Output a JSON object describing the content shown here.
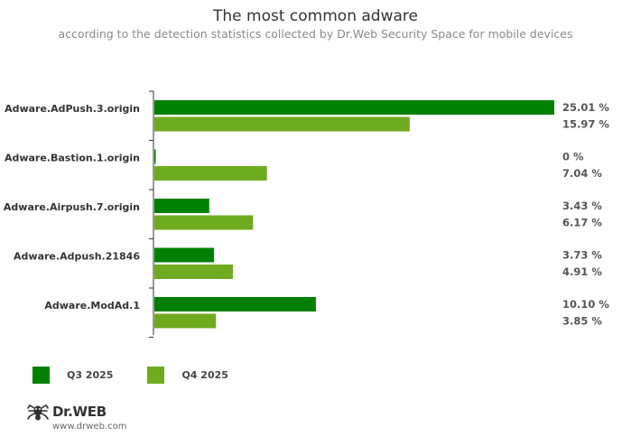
{
  "title": "The most common adware",
  "subtitle": "according to the detection statistics collected by Dr.Web Security Space for mobile devices",
  "colors": {
    "q3": "#008000",
    "q4": "#6fab1e",
    "axis": "#333333"
  },
  "chart_data": {
    "type": "bar",
    "orientation": "horizontal",
    "categories": [
      "Adware.AdPush.3.origin",
      "Adware.Bastion.1.origin",
      "Adware.Airpush.7.origin",
      "Adware.Adpush.21846",
      "Adware.ModAd.1"
    ],
    "series": [
      {
        "name": "Q3 2025",
        "values": [
          25.01,
          0,
          3.43,
          3.73,
          10.1
        ],
        "labels": [
          "25.01 %",
          "0 %",
          "3.43 %",
          "3.73 %",
          "10.10 %"
        ]
      },
      {
        "name": "Q4 2025",
        "values": [
          15.97,
          7.04,
          6.17,
          4.91,
          3.85
        ],
        "labels": [
          "15.97 %",
          "7.04 %",
          "6.17 %",
          "4.91 %",
          "3.85 %"
        ]
      }
    ],
    "xlim": [
      0,
      25.01
    ],
    "legend_position": "bottom-left"
  },
  "logo": {
    "name": "Dr.WEB",
    "url": "www.drweb.com"
  }
}
